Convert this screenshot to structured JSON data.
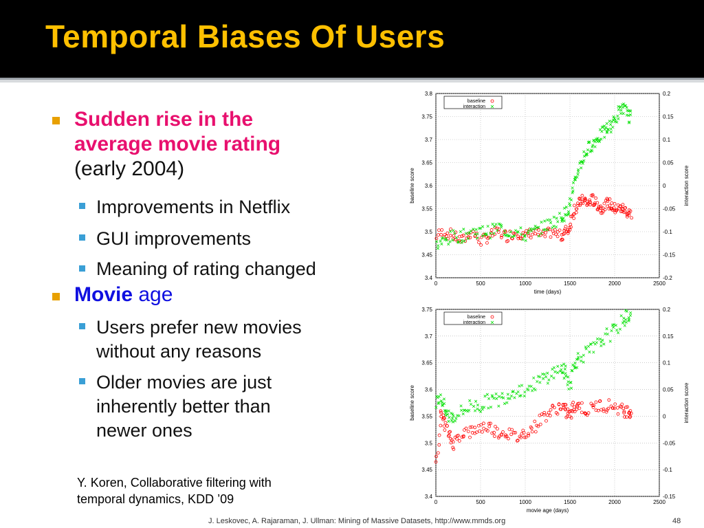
{
  "slide": {
    "title": "Temporal Biases Of Users",
    "bullets": [
      {
        "l1a": "Sudden rise in the",
        "l1b": "average movie rating",
        "l1c": "(early 2004)"
      },
      {
        "l1": "Movie",
        "l1b": "age"
      }
    ],
    "sub1": [
      "Improvements in Netflix",
      "GUI improvements",
      "Meaning of rating changed"
    ],
    "sub2a": [
      "Users prefer new movies",
      "without any reasons"
    ],
    "sub2b": [
      "Older movies are just",
      "inherently better than",
      "newer ones"
    ],
    "citation": [
      "Y. Koren, Collaborative filtering with",
      "temporal dynamics, KDD ’09"
    ],
    "footer": "J. Leskovec, A. Rajaraman, J. Ullman: Mining of Massive Datasets, http://www.mmds.org",
    "page": "48"
  },
  "colors": {
    "title": "#ffc000",
    "bullet1": "#e8106e",
    "bullet2": "#1010e0",
    "baseline": "#ff0000",
    "interaction": "#00e000"
  },
  "chart_data": [
    {
      "type": "scatter",
      "xlabel": "time (days)",
      "ylabel": "baseline score",
      "y2label": "interaction score",
      "xlim": [
        0,
        2500
      ],
      "ylim": [
        3.4,
        3.8
      ],
      "y2lim": [
        -0.2,
        0.2
      ],
      "xticks": [
        0,
        500,
        1000,
        1500,
        2000,
        2500
      ],
      "yticks": [
        3.4,
        3.45,
        3.5,
        3.55,
        3.6,
        3.65,
        3.7,
        3.75,
        3.8
      ],
      "y2ticks": [
        -0.2,
        -0.15,
        -0.1,
        -0.05,
        0,
        0.05,
        0.1,
        0.15,
        0.2
      ],
      "grid": true,
      "legend_position": "top-left",
      "series": [
        {
          "name": "baseline",
          "marker": "circle",
          "axis": "left",
          "x": [
            0,
            100,
            200,
            300,
            400,
            500,
            600,
            700,
            800,
            900,
            1000,
            1100,
            1200,
            1300,
            1400,
            1450,
            1500,
            1550,
            1600,
            1650,
            1700,
            1750,
            1800,
            1850,
            1900,
            1950,
            2000,
            2050,
            2100,
            2150
          ],
          "y": [
            3.49,
            3.5,
            3.49,
            3.48,
            3.5,
            3.48,
            3.49,
            3.5,
            3.49,
            3.5,
            3.49,
            3.5,
            3.49,
            3.5,
            3.49,
            3.5,
            3.51,
            3.55,
            3.56,
            3.57,
            3.56,
            3.57,
            3.56,
            3.55,
            3.56,
            3.56,
            3.55,
            3.55,
            3.55,
            3.54
          ]
        },
        {
          "name": "interaction",
          "marker": "x",
          "axis": "right",
          "x": [
            0,
            100,
            200,
            300,
            400,
            500,
            600,
            700,
            800,
            900,
            1000,
            1100,
            1200,
            1300,
            1400,
            1450,
            1500,
            1550,
            1600,
            1650,
            1700,
            1750,
            1800,
            1850,
            1900,
            1950,
            2000,
            2050,
            2100,
            2150
          ],
          "y": [
            -0.13,
            -0.12,
            -0.11,
            -0.11,
            -0.1,
            -0.1,
            -0.1,
            -0.09,
            -0.1,
            -0.1,
            -0.11,
            -0.1,
            -0.09,
            -0.08,
            -0.07,
            -0.06,
            -0.04,
            0.0,
            0.04,
            0.06,
            0.08,
            0.09,
            0.1,
            0.11,
            0.12,
            0.13,
            0.14,
            0.16,
            0.17,
            0.15
          ]
        }
      ]
    },
    {
      "type": "scatter",
      "xlabel": "movie age (days)",
      "ylabel": "baseline score",
      "y2label": "interaction score",
      "xlim": [
        0,
        2500
      ],
      "ylim": [
        3.4,
        3.75
      ],
      "y2lim": [
        -0.15,
        0.2
      ],
      "xticks": [
        0,
        500,
        1000,
        1500,
        2000,
        2500
      ],
      "yticks": [
        3.4,
        3.45,
        3.5,
        3.55,
        3.6,
        3.65,
        3.7,
        3.75
      ],
      "y2ticks": [
        -0.15,
        -0.1,
        -0.05,
        0,
        0.05,
        0.1,
        0.15,
        0.2
      ],
      "grid": true,
      "legend_position": "top-left",
      "series": [
        {
          "name": "baseline",
          "marker": "circle",
          "axis": "left",
          "x": [
            0,
            50,
            100,
            150,
            200,
            300,
            400,
            500,
            600,
            700,
            800,
            900,
            1000,
            1100,
            1200,
            1300,
            1400,
            1450,
            1500,
            1550,
            1600,
            1700,
            1800,
            1900,
            2000,
            2100,
            2150
          ],
          "y": [
            3.45,
            3.55,
            3.54,
            3.51,
            3.5,
            3.52,
            3.52,
            3.53,
            3.53,
            3.52,
            3.52,
            3.51,
            3.52,
            3.53,
            3.55,
            3.56,
            3.57,
            3.56,
            3.55,
            3.57,
            3.57,
            3.56,
            3.57,
            3.57,
            3.57,
            3.56,
            3.56
          ]
        },
        {
          "name": "interaction",
          "marker": "x",
          "axis": "right",
          "x": [
            0,
            50,
            100,
            150,
            200,
            300,
            400,
            500,
            600,
            700,
            800,
            900,
            1000,
            1100,
            1200,
            1300,
            1400,
            1450,
            1500,
            1550,
            1600,
            1700,
            1800,
            1900,
            2000,
            2100,
            2150
          ],
          "y": [
            0.02,
            0.04,
            0.01,
            0.0,
            0.0,
            0.01,
            0.02,
            0.02,
            0.03,
            0.03,
            0.04,
            0.05,
            0.05,
            0.06,
            0.07,
            0.08,
            0.09,
            0.08,
            0.06,
            0.1,
            0.11,
            0.12,
            0.13,
            0.15,
            0.16,
            0.18,
            0.19
          ]
        }
      ]
    }
  ]
}
